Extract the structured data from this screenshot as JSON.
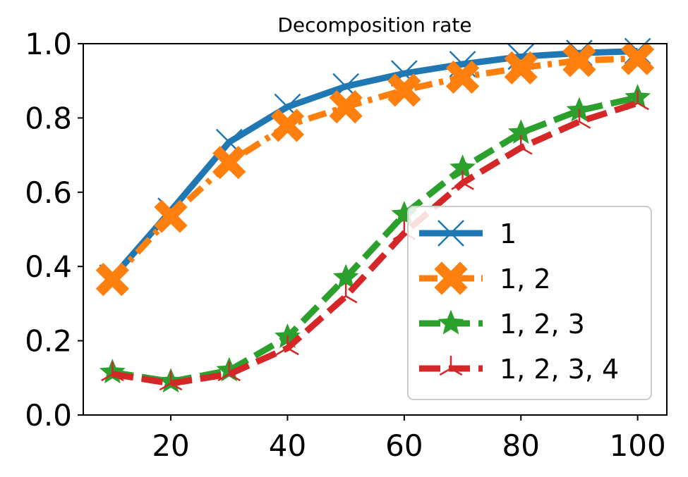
{
  "chart_data": {
    "type": "line",
    "title": "Decomposition rate",
    "xlabel": "",
    "ylabel": "",
    "x": [
      10,
      20,
      30,
      40,
      50,
      60,
      70,
      80,
      90,
      100
    ],
    "xlim": [
      5,
      105
    ],
    "ylim": [
      0.0,
      1.0
    ],
    "xticks": [
      "20",
      "40",
      "60",
      "80",
      "100"
    ],
    "yticks": [
      "0.0",
      "0.2",
      "0.4",
      "0.6",
      "0.8",
      "1.0"
    ],
    "grid": false,
    "legend_position": "lower-right",
    "series": [
      {
        "name": "1",
        "color": "#1f77b4",
        "marker": "x",
        "dash": "solid",
        "values": [
          0.37,
          0.55,
          0.735,
          0.83,
          0.885,
          0.92,
          0.945,
          0.965,
          0.975,
          0.98
        ]
      },
      {
        "name": "1, 2",
        "color": "#ff7f0e",
        "marker": "X",
        "dash": "dashdot",
        "values": [
          0.365,
          0.535,
          0.68,
          0.78,
          0.83,
          0.875,
          0.91,
          0.935,
          0.955,
          0.96
        ]
      },
      {
        "name": "1, 2, 3",
        "color": "#2ca02c",
        "marker": "star",
        "dash": "dashed",
        "values": [
          0.115,
          0.09,
          0.12,
          0.21,
          0.37,
          0.54,
          0.665,
          0.76,
          0.82,
          0.855
        ]
      },
      {
        "name": "1, 2, 3, 4",
        "color": "#d62728",
        "marker": "tri",
        "dash": "dashed",
        "values": [
          0.11,
          0.085,
          0.11,
          0.18,
          0.32,
          0.49,
          0.625,
          0.72,
          0.79,
          0.84
        ]
      }
    ]
  }
}
